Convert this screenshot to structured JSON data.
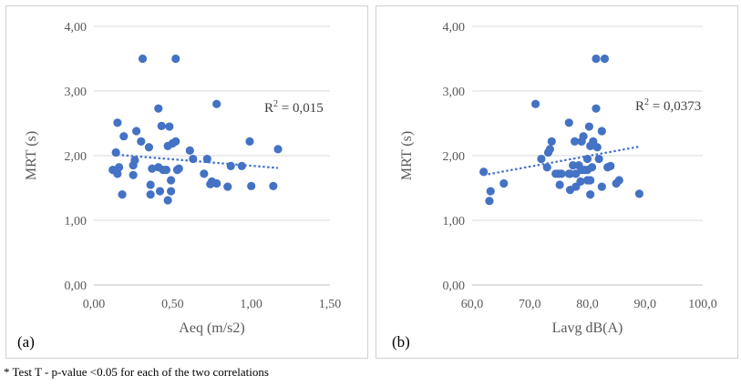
{
  "chart_data": [
    {
      "type": "scatter",
      "panel_label": "(a)",
      "xlabel": "Aeq (m/s2)",
      "ylabel": "MRT (s)",
      "xlim": [
        0,
        1.5
      ],
      "ylim": [
        0,
        4
      ],
      "xticks": [
        "0,00",
        "0,50",
        "1,00",
        "1,50"
      ],
      "yticks": [
        "0,00",
        "1,00",
        "2,00",
        "3,00",
        "4,00"
      ],
      "annotation": {
        "prefix": "R",
        "sup": "2",
        "suffix": " = 0,015"
      },
      "trendline": {
        "x": [
          0.12,
          1.17
        ],
        "y": [
          2.02,
          1.81
        ]
      },
      "colors": {
        "points": "#4472c4",
        "trend": "#4472c4"
      },
      "points": {
        "x": [
          0.31,
          0.52,
          0.41,
          0.78,
          0.15,
          0.27,
          0.43,
          0.48,
          0.26,
          0.3,
          0.52,
          0.99,
          0.19,
          0.47,
          1.17,
          0.14,
          0.35,
          0.63,
          0.72,
          0.25,
          0.16,
          0.41,
          0.44,
          0.46,
          0.53,
          0.12,
          0.25,
          0.7,
          0.87,
          0.94,
          0.49,
          0.15,
          0.36,
          0.75,
          0.78,
          0.61,
          0.85,
          0.74,
          0.42,
          0.49,
          0.18,
          0.36,
          0.47,
          1.0,
          1.14,
          0.37,
          0.54,
          0.5
        ],
        "y": [
          3.5,
          3.5,
          2.73,
          2.8,
          2.51,
          2.38,
          2.46,
          2.45,
          1.93,
          2.22,
          2.22,
          2.22,
          2.3,
          2.15,
          2.1,
          2.05,
          2.13,
          1.95,
          1.95,
          1.85,
          1.82,
          1.82,
          1.78,
          1.78,
          1.78,
          1.78,
          1.7,
          1.72,
          1.84,
          1.84,
          1.62,
          1.72,
          1.55,
          1.6,
          1.57,
          2.08,
          1.52,
          1.56,
          1.45,
          1.45,
          1.4,
          1.4,
          1.31,
          1.53,
          1.53,
          1.8,
          1.8,
          2.19
        ]
      }
    },
    {
      "type": "scatter",
      "panel_label": "(b)",
      "xlabel": "Lavg dB(A)",
      "ylabel": "MRT (s)",
      "xlim": [
        60,
        100
      ],
      "ylim": [
        0,
        4
      ],
      "xticks": [
        "60,0",
        "70,0",
        "80,0",
        "90,0",
        "100,0"
      ],
      "yticks": [
        "0,00",
        "1,00",
        "2,00",
        "3,00",
        "4,00"
      ],
      "annotation": {
        "prefix": "R",
        "sup": "2",
        "suffix": " = 0,0373"
      },
      "trendline": {
        "x": [
          62.0,
          89.0
        ],
        "y": [
          1.7,
          2.14
        ]
      },
      "colors": {
        "points": "#4472c4",
        "trend": "#4472c4"
      },
      "points": {
        "x": [
          81.5,
          83.0,
          71.0,
          81.5,
          76.8,
          79.3,
          80.3,
          82.5,
          73.8,
          77.8,
          79.0,
          81.0,
          81.7,
          80.5,
          73.5,
          73.2,
          72.0,
          80.0,
          77.5,
          78.5,
          82.0,
          73.0,
          80.8,
          79.0,
          83.5,
          62.0,
          75.0,
          76.8,
          78.0,
          79.5,
          80.0,
          84.0,
          74.5,
          75.5,
          77.0,
          78.8,
          80.5,
          82.5,
          85.0,
          85.5,
          65.5,
          75.2,
          77.0,
          78.0,
          80.0,
          63.2,
          63.0,
          80.5,
          89.0
        ],
        "y": [
          3.5,
          3.5,
          2.8,
          2.73,
          2.51,
          2.3,
          2.45,
          2.38,
          2.22,
          2.22,
          2.22,
          2.22,
          2.13,
          2.15,
          2.1,
          2.05,
          1.95,
          1.95,
          1.85,
          1.85,
          1.95,
          1.82,
          1.82,
          1.78,
          1.82,
          1.75,
          1.72,
          1.72,
          1.72,
          1.78,
          1.78,
          1.84,
          1.72,
          1.72,
          1.72,
          1.6,
          1.62,
          1.52,
          1.57,
          1.62,
          1.57,
          1.55,
          1.47,
          1.52,
          1.62,
          1.45,
          1.3,
          1.4,
          1.41
        ]
      }
    }
  ],
  "footnote": "* Test T - p-value <0.05 for each of the two correlations"
}
